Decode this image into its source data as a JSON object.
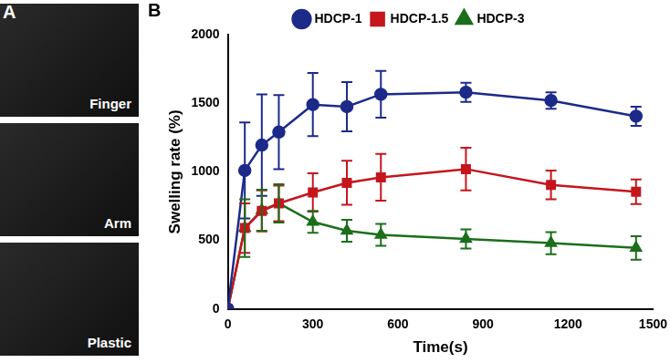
{
  "panel_a": {
    "label": "A",
    "captions": [
      "Finger",
      "Arm",
      "Plastic"
    ]
  },
  "panel_b_label": "B",
  "chart_data": {
    "type": "line",
    "x_label": "Time(s)",
    "y_label": "Swelling rate (%)",
    "x": [
      0,
      60,
      120,
      180,
      300,
      420,
      540,
      840,
      1140,
      1440
    ],
    "series": [
      {
        "name": "HDCP-1",
        "color": "#1c2a8a",
        "marker": "circle",
        "values": [
          0,
          1010,
          1195,
          1290,
          1490,
          1475,
          1565,
          1580,
          1520,
          1405
        ],
        "errors": [
          0,
          350,
          370,
          270,
          230,
          180,
          170,
          70,
          60,
          70
        ]
      },
      {
        "name": "HDCP-1.5",
        "color": "#c4161c",
        "marker": "square",
        "values": [
          0,
          590,
          715,
          770,
          850,
          920,
          960,
          1020,
          905,
          855
        ],
        "errors": [
          0,
          180,
          150,
          130,
          140,
          160,
          170,
          155,
          105,
          90
        ]
      },
      {
        "name": "HDCP-3",
        "color": "#1b6e1b",
        "marker": "triangle",
        "values": [
          0,
          590,
          720,
          770,
          635,
          570,
          540,
          510,
          480,
          445
        ],
        "errors": [
          0,
          210,
          150,
          140,
          80,
          80,
          80,
          70,
          80,
          85
        ]
      }
    ],
    "xlim": [
      0,
      1500
    ],
    "xticks": [
      0,
      300,
      600,
      900,
      1200,
      1500
    ],
    "ylim": [
      0,
      2000
    ],
    "yticks": [
      0,
      500,
      1000,
      1500,
      2000
    ],
    "grid": false,
    "legend": "top"
  }
}
